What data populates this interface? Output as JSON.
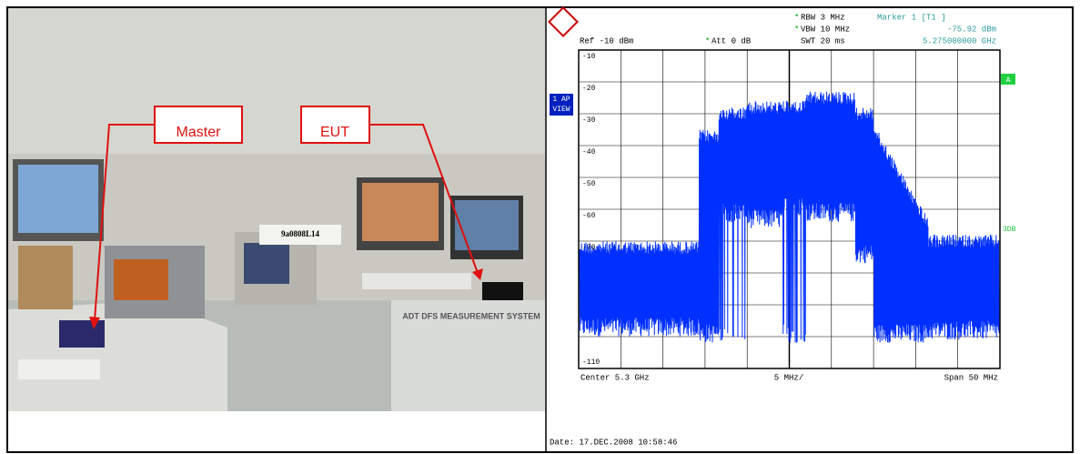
{
  "photo": {
    "labels": [
      "Master",
      "EUT"
    ],
    "sign": "9a0808L14",
    "rack": "ADT DFS MEASUREMENT SYSTEM"
  },
  "analyzer": {
    "flag": "*",
    "rbw": "RBW 3 MHz",
    "vbw": "VBW 10 MHz",
    "swt": "SWT 20 ms",
    "marker": "Marker 1 [T1 ]",
    "marker_level": "-75.92 dBm",
    "marker_freq": "5.275000000 GHz",
    "ref": "Ref -10 dBm",
    "att": "Att 0 dB",
    "mode": [
      "1 AP",
      "VIEW"
    ],
    "trace_flag": "A",
    "side_label": "3DB",
    "y_labels": [
      "-10",
      "-20",
      "-30",
      "-40",
      "-50",
      "-60",
      "-70",
      "-110"
    ],
    "center": "Center 5.3 GHz",
    "div": "5 MHz/",
    "span": "Span 50 MHz",
    "date": "Date: 17.DEC.2008  10:58:46"
  }
}
